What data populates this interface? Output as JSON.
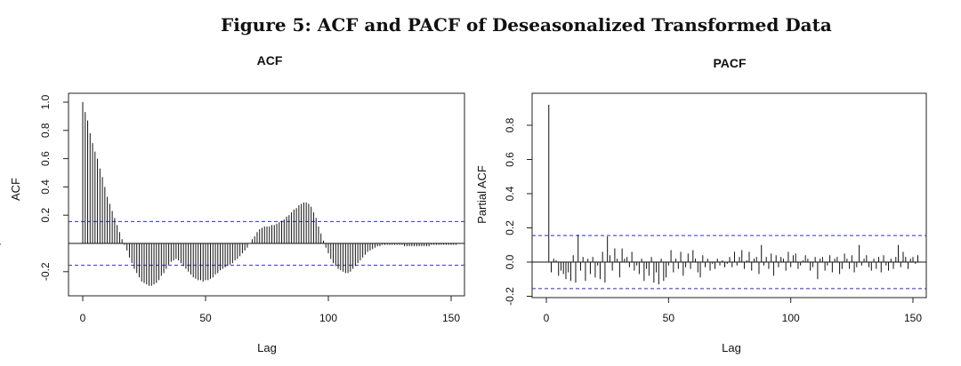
{
  "figure": {
    "title": "Figure 5: ACF and PACF of Deseasonalized Transformed Data"
  },
  "chart_data": [
    {
      "type": "bar",
      "id": "acf",
      "title": "ACF",
      "xlabel": "Lag",
      "ylabel": "ACF",
      "xlim": [
        0,
        150
      ],
      "ylim": [
        -0.3,
        1.0
      ],
      "xticks": [
        "0",
        "50",
        "100",
        "150"
      ],
      "yticks": [
        "-0.2",
        "0.2",
        "0.4",
        "0.6",
        "0.8",
        "1.0"
      ],
      "conf_bounds": [
        0.155,
        -0.155
      ],
      "lags": [
        0,
        1,
        2,
        3,
        4,
        5,
        6,
        7,
        8,
        9,
        10,
        11,
        12,
        13,
        14,
        15,
        16,
        17,
        18,
        19,
        20,
        21,
        22,
        23,
        24,
        25,
        26,
        27,
        28,
        29,
        30,
        31,
        32,
        33,
        34,
        35,
        36,
        37,
        38,
        39,
        40,
        41,
        42,
        43,
        44,
        45,
        46,
        47,
        48,
        49,
        50,
        51,
        52,
        53,
        54,
        55,
        56,
        57,
        58,
        59,
        60,
        61,
        62,
        63,
        64,
        65,
        66,
        67,
        68,
        69,
        70,
        71,
        72,
        73,
        74,
        75,
        76,
        77,
        78,
        79,
        80,
        81,
        82,
        83,
        84,
        85,
        86,
        87,
        88,
        89,
        90,
        91,
        92,
        93,
        94,
        95,
        96,
        97,
        98,
        99,
        100,
        101,
        102,
        103,
        104,
        105,
        106,
        107,
        108,
        109,
        110,
        111,
        112,
        113,
        114,
        115,
        116,
        117,
        118,
        119,
        120,
        121,
        122,
        123,
        124,
        125,
        126,
        127,
        128,
        129,
        130,
        131,
        132,
        133,
        134,
        135,
        136,
        137,
        138,
        139,
        140,
        141,
        142,
        143,
        144,
        145,
        146,
        147,
        148,
        149,
        150,
        151,
        152
      ],
      "values": [
        1.0,
        0.93,
        0.87,
        0.78,
        0.71,
        0.65,
        0.6,
        0.53,
        0.47,
        0.4,
        0.33,
        0.28,
        0.23,
        0.18,
        0.13,
        0.08,
        0.03,
        -0.01,
        -0.05,
        -0.1,
        -0.14,
        -0.18,
        -0.21,
        -0.24,
        -0.27,
        -0.28,
        -0.29,
        -0.3,
        -0.3,
        -0.29,
        -0.28,
        -0.26,
        -0.23,
        -0.21,
        -0.18,
        -0.15,
        -0.13,
        -0.12,
        -0.11,
        -0.12,
        -0.14,
        -0.16,
        -0.18,
        -0.2,
        -0.22,
        -0.24,
        -0.25,
        -0.26,
        -0.26,
        -0.27,
        -0.26,
        -0.26,
        -0.25,
        -0.24,
        -0.22,
        -0.21,
        -0.19,
        -0.18,
        -0.17,
        -0.16,
        -0.15,
        -0.14,
        -0.12,
        -0.11,
        -0.09,
        -0.07,
        -0.05,
        -0.03,
        0.0,
        0.03,
        0.05,
        0.08,
        0.1,
        0.11,
        0.12,
        0.12,
        0.12,
        0.13,
        0.13,
        0.14,
        0.15,
        0.16,
        0.17,
        0.19,
        0.2,
        0.22,
        0.24,
        0.25,
        0.27,
        0.28,
        0.29,
        0.29,
        0.28,
        0.26,
        0.22,
        0.18,
        0.12,
        0.07,
        0.02,
        -0.03,
        -0.07,
        -0.11,
        -0.14,
        -0.16,
        -0.18,
        -0.19,
        -0.2,
        -0.21,
        -0.21,
        -0.2,
        -0.18,
        -0.16,
        -0.14,
        -0.12,
        -0.1,
        -0.08,
        -0.06,
        -0.05,
        -0.04,
        -0.03,
        -0.02,
        -0.02,
        -0.01,
        -0.01,
        -0.01,
        -0.01,
        -0.01,
        -0.01,
        -0.01,
        -0.01,
        -0.01,
        -0.02,
        -0.02,
        -0.02,
        -0.02,
        -0.02,
        -0.02,
        -0.02,
        -0.02,
        -0.02,
        -0.02,
        -0.02,
        -0.01,
        -0.01,
        -0.01,
        -0.01,
        -0.01,
        -0.01,
        -0.01,
        -0.01,
        -0.01,
        -0.01,
        -0.01,
        -0.01,
        -0.01
      ]
    },
    {
      "type": "bar",
      "id": "pacf",
      "title": "PACF",
      "xlabel": "Lag",
      "ylabel": "Partial ACF",
      "xlim": [
        0,
        150
      ],
      "ylim": [
        -0.2,
        0.9
      ],
      "xticks": [
        "0",
        "50",
        "100",
        "150"
      ],
      "yticks": [
        "-0.2",
        "0.0",
        "0.2",
        "0.4",
        "0.6",
        "0.8"
      ],
      "conf_bounds": [
        0.155,
        -0.155
      ],
      "lags": [
        1,
        2,
        3,
        4,
        5,
        6,
        7,
        8,
        9,
        10,
        11,
        12,
        13,
        14,
        15,
        16,
        17,
        18,
        19,
        20,
        21,
        22,
        23,
        24,
        25,
        26,
        27,
        28,
        29,
        30,
        31,
        32,
        33,
        34,
        35,
        36,
        37,
        38,
        39,
        40,
        41,
        42,
        43,
        44,
        45,
        46,
        47,
        48,
        49,
        50,
        51,
        52,
        53,
        54,
        55,
        56,
        57,
        58,
        59,
        60,
        61,
        62,
        63,
        64,
        65,
        66,
        67,
        68,
        69,
        70,
        71,
        72,
        73,
        74,
        75,
        76,
        77,
        78,
        79,
        80,
        81,
        82,
        83,
        84,
        85,
        86,
        87,
        88,
        89,
        90,
        91,
        92,
        93,
        94,
        95,
        96,
        97,
        98,
        99,
        100,
        101,
        102,
        103,
        104,
        105,
        106,
        107,
        108,
        109,
        110,
        111,
        112,
        113,
        114,
        115,
        116,
        117,
        118,
        119,
        120,
        121,
        122,
        123,
        124,
        125,
        126,
        127,
        128,
        129,
        130,
        131,
        132,
        133,
        134,
        135,
        136,
        137,
        138,
        139,
        140,
        141,
        142,
        143,
        144,
        145,
        146,
        147,
        148,
        149,
        150,
        151,
        152
      ],
      "values": [
        0.92,
        -0.06,
        0.02,
        0.01,
        -0.08,
        -0.05,
        -0.07,
        -0.1,
        -0.06,
        -0.11,
        0.04,
        -0.12,
        0.16,
        -0.05,
        0.03,
        -0.11,
        0.02,
        -0.07,
        0.03,
        -0.09,
        -0.02,
        -0.1,
        0.06,
        -0.12,
        0.15,
        0.04,
        -0.05,
        0.08,
        0.02,
        -0.09,
        0.08,
        0.02,
        0.03,
        -0.03,
        0.06,
        -0.05,
        -0.02,
        -0.07,
        0.02,
        -0.11,
        -0.04,
        -0.08,
        0.03,
        -0.12,
        -0.06,
        -0.13,
        0.02,
        -0.11,
        -0.09,
        -0.02,
        0.07,
        -0.06,
        0.02,
        -0.04,
        0.06,
        -0.08,
        -0.03,
        0.05,
        -0.04,
        0.07,
        0.02,
        -0.06,
        -0.09,
        0.04,
        -0.03,
        0.02,
        -0.05,
        -0.01,
        -0.04,
        0.02,
        -0.02,
        0.01,
        -0.03,
        -0.01,
        0.03,
        -0.03,
        0.06,
        -0.02,
        0.03,
        0.07,
        -0.04,
        0.01,
        0.06,
        -0.05,
        0.02,
        0.03,
        -0.07,
        0.1,
        -0.02,
        0.03,
        -0.04,
        0.05,
        -0.08,
        0.04,
        -0.03,
        0.03,
        0.02,
        -0.05,
        0.06,
        -0.03,
        0.04,
        0.05,
        -0.04,
        -0.02,
        0.01,
        0.04,
        0.02,
        -0.05,
        -0.03,
        0.03,
        -0.1,
        0.02,
        0.03,
        -0.05,
        -0.02,
        0.04,
        -0.06,
        0.02,
        0.03,
        -0.07,
        -0.04,
        0.05,
        0.02,
        -0.04,
        0.04,
        -0.06,
        -0.03,
        0.1,
        -0.02,
        0.02,
        0.04,
        -0.03,
        -0.05,
        0.02,
        -0.04,
        0.03,
        -0.06,
        0.04,
        -0.02,
        -0.05,
        0.02,
        -0.04,
        0.03,
        0.1,
        -0.03,
        0.06,
        0.03,
        -0.04,
        0.02,
        0.03,
        -0.01,
        0.04
      ]
    }
  ]
}
